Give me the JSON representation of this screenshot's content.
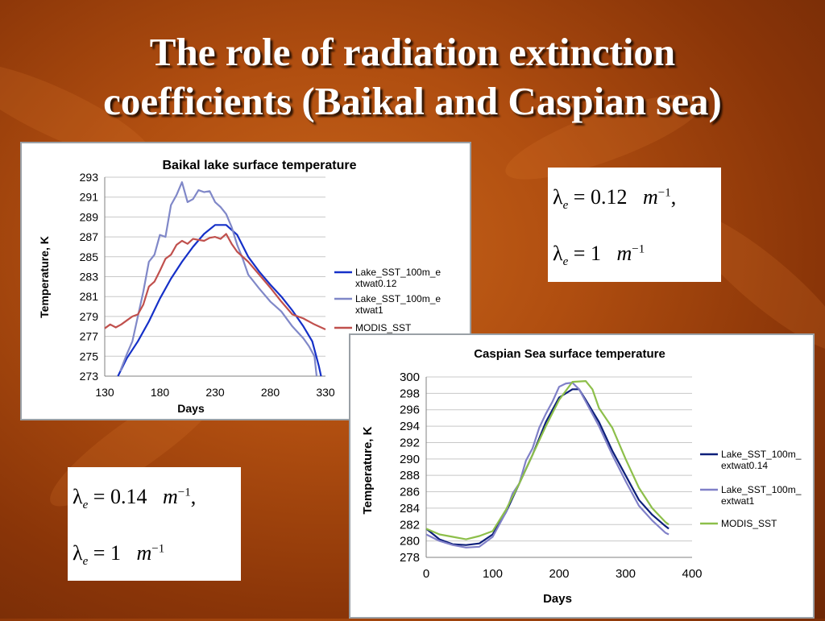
{
  "slide": {
    "title_line1": "The role of radiation extinction",
    "title_line2": "coefficients (Baikal and Caspian sea)"
  },
  "formulas": {
    "top": [
      {
        "symbol": "λ",
        "sub": "e",
        "eq": " = ",
        "value": "0.12",
        "unit": "m",
        "exp": "−1",
        "tail": ","
      },
      {
        "symbol": "λ",
        "sub": "e",
        "eq": " = ",
        "value": "1",
        "unit": "m",
        "exp": "−1",
        "tail": ""
      }
    ],
    "bottom": [
      {
        "symbol": "λ",
        "sub": "e",
        "eq": " = ",
        "value": "0.14",
        "unit": "m",
        "exp": "−1",
        "tail": ","
      },
      {
        "symbol": "λ",
        "sub": "e",
        "eq": " = ",
        "value": "1",
        "unit": "m",
        "exp": "−1",
        "tail": ""
      }
    ]
  },
  "chart_data": [
    {
      "type": "line",
      "title": "Baikal lake surface temperature",
      "xlabel": "Days",
      "ylabel": "Temperature, K",
      "xlim": [
        130,
        330
      ],
      "ylim": [
        273,
        293
      ],
      "xticks": [
        130,
        180,
        230,
        280,
        330
      ],
      "yticks": [
        273,
        275,
        277,
        279,
        281,
        283,
        285,
        287,
        289,
        291,
        293
      ],
      "grid": true,
      "legend_position": "right",
      "series": [
        {
          "name": "Lake_SST_100m_extwat0.12",
          "legend_lines": [
            "Lake_SST_100m_e",
            "xtwat0.12"
          ],
          "color": "#1530c8",
          "x": [
            142,
            150,
            160,
            170,
            180,
            190,
            200,
            210,
            220,
            230,
            240,
            250,
            260,
            270,
            280,
            290,
            300,
            310,
            318,
            324,
            326
          ],
          "y": [
            273,
            274.8,
            276.5,
            278.5,
            280.8,
            282.8,
            284.5,
            286,
            287.3,
            288.2,
            288.2,
            287.2,
            285,
            283.5,
            282.2,
            281,
            279.6,
            278,
            276.5,
            274,
            273
          ]
        },
        {
          "name": "Lake_SST_100m_extwat1",
          "legend_lines": [
            "Lake_SST_100m_e",
            "xtwat1"
          ],
          "color": "#8088c8",
          "x": [
            144,
            150,
            155,
            160,
            165,
            170,
            175,
            180,
            185,
            190,
            195,
            200,
            205,
            210,
            215,
            220,
            225,
            230,
            235,
            240,
            245,
            250,
            255,
            260,
            270,
            280,
            290,
            300,
            310,
            315,
            320,
            322
          ],
          "y": [
            273.5,
            275.2,
            276.5,
            279,
            281.5,
            284.5,
            285.2,
            287.2,
            287,
            290.2,
            291.2,
            292.5,
            290.5,
            290.8,
            291.7,
            291.5,
            291.6,
            290.5,
            290,
            289.3,
            288,
            286.2,
            284.8,
            283.2,
            281.8,
            280.5,
            279.5,
            278,
            276.8,
            276,
            275,
            273
          ]
        },
        {
          "name": "MODIS_SST",
          "legend_lines": [
            "MODIS_SST"
          ],
          "color": "#c0504d",
          "x": [
            130,
            135,
            140,
            145,
            150,
            155,
            160,
            165,
            170,
            175,
            180,
            185,
            190,
            195,
            200,
            205,
            210,
            215,
            220,
            225,
            230,
            235,
            240,
            245,
            250,
            260,
            270,
            280,
            290,
            300,
            310,
            320,
            330
          ],
          "y": [
            277.8,
            278.2,
            277.9,
            278.2,
            278.6,
            279,
            279.2,
            280.2,
            282,
            282.5,
            283.6,
            284.8,
            285.2,
            286.2,
            286.6,
            286.3,
            286.8,
            286.7,
            286.6,
            286.9,
            287,
            286.8,
            287.3,
            286.3,
            285.5,
            284.5,
            283.2,
            281.9,
            280.5,
            279.2,
            278.8,
            278.2,
            277.7
          ]
        }
      ]
    },
    {
      "type": "line",
      "title": "Caspian Sea surface temperature",
      "xlabel": "Days",
      "ylabel": "Temperature, K",
      "xlim": [
        0,
        400
      ],
      "ylim": [
        278,
        300
      ],
      "xticks": [
        0,
        100,
        200,
        300,
        400
      ],
      "yticks": [
        278,
        280,
        282,
        284,
        286,
        288,
        290,
        292,
        294,
        296,
        298,
        300
      ],
      "grid": true,
      "legend_position": "right",
      "series": [
        {
          "name": "Lake_SST_100m_extwat0.14",
          "legend_lines": [
            "Lake_SST_100m_",
            "extwat0.14"
          ],
          "color": "#0d1f7a",
          "x": [
            0,
            20,
            40,
            60,
            80,
            100,
            120,
            140,
            160,
            180,
            200,
            220,
            230,
            240,
            260,
            280,
            300,
            320,
            340,
            360,
            365
          ],
          "y": [
            281.5,
            280.2,
            279.6,
            279.5,
            279.7,
            280.8,
            283.5,
            287,
            290.5,
            294.5,
            297.5,
            298.5,
            298.5,
            297.2,
            294.5,
            291,
            288,
            285,
            283.2,
            281.8,
            281.5
          ]
        },
        {
          "name": "Lake_SST_100m_extwat1",
          "legend_lines": [
            "Lake_SST_100m_",
            "extwat1"
          ],
          "color": "#8080c8",
          "x": [
            0,
            20,
            40,
            60,
            80,
            100,
            120,
            130,
            140,
            150,
            160,
            170,
            180,
            190,
            200,
            210,
            220,
            230,
            240,
            260,
            280,
            300,
            320,
            340,
            360,
            365
          ],
          "y": [
            280.8,
            280,
            279.5,
            279.2,
            279.3,
            280.5,
            283.5,
            285.8,
            287,
            289.8,
            291.3,
            293.8,
            295.5,
            297,
            298.8,
            299.2,
            299.3,
            298.5,
            297,
            294,
            290.5,
            287.3,
            284.3,
            282.5,
            281,
            280.8
          ]
        },
        {
          "name": "MODIS_SST",
          "legend_lines": [
            "MODIS_SST"
          ],
          "color": "#8dbf4a",
          "x": [
            0,
            20,
            40,
            60,
            80,
            100,
            120,
            140,
            160,
            180,
            200,
            220,
            240,
            250,
            260,
            280,
            300,
            320,
            340,
            360,
            365
          ],
          "y": [
            281.5,
            280.8,
            280.5,
            280.2,
            280.6,
            281.2,
            283.8,
            287,
            290.5,
            294,
            297.2,
            299.4,
            299.5,
            298.5,
            296.2,
            293.8,
            290,
            286.5,
            284,
            282.3,
            282
          ]
        }
      ]
    }
  ]
}
